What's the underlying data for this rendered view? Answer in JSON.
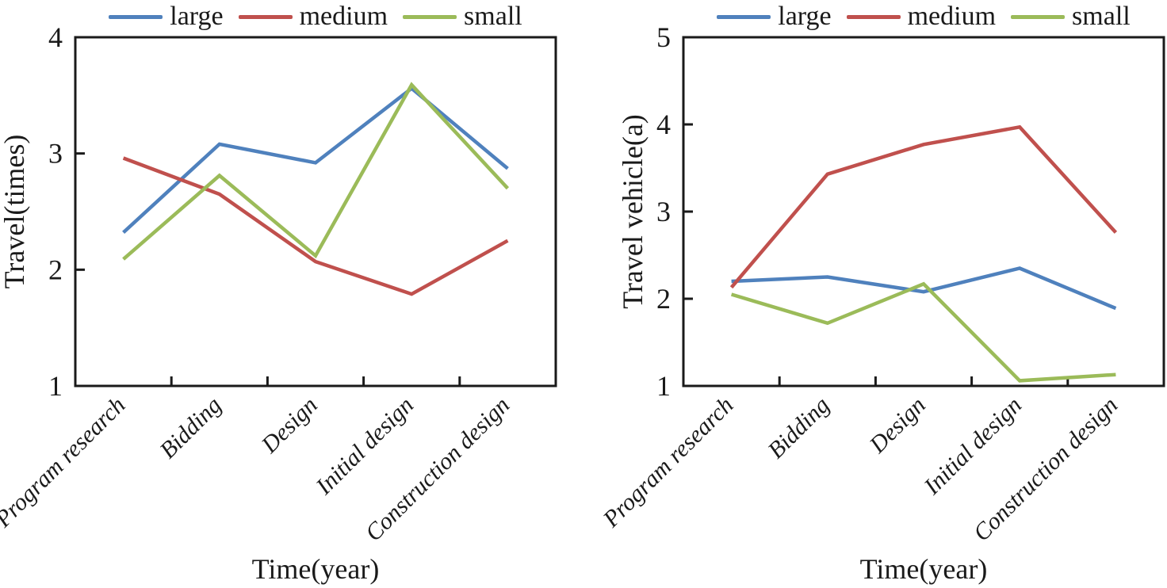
{
  "figure": {
    "background": "#ffffff",
    "text_color": "#1a1a1a",
    "axis_color": "#1a1a1a"
  },
  "legend": {
    "position": "top",
    "labels": [
      "large",
      "medium",
      "small"
    ]
  },
  "chart_data": [
    {
      "id": "travel-times",
      "type": "line",
      "title": "",
      "xlabel": "Time(year)",
      "ylabel": "Travel(times)",
      "ylim": [
        1,
        4
      ],
      "yticks": [
        1,
        2,
        3,
        4
      ],
      "grid": false,
      "legend_position": "top",
      "categories": [
        "Program research",
        "Bidding",
        "Design",
        "Initial design",
        "Construction design"
      ],
      "series": [
        {
          "name": "large",
          "color": "#4f81bd",
          "values": [
            2.32,
            3.08,
            2.92,
            3.56,
            2.87
          ]
        },
        {
          "name": "medium",
          "color": "#c0504d",
          "values": [
            2.96,
            2.65,
            2.07,
            1.79,
            2.25
          ]
        },
        {
          "name": "small",
          "color": "#9bbb59",
          "values": [
            2.09,
            2.81,
            2.12,
            3.59,
            2.7
          ]
        }
      ]
    },
    {
      "id": "travel-vehicle",
      "type": "line",
      "title": "",
      "xlabel": "Time(year)",
      "ylabel": "Travel vehicle(a)",
      "ylim": [
        1,
        5
      ],
      "yticks": [
        1,
        2,
        3,
        4,
        5
      ],
      "grid": false,
      "legend_position": "top",
      "categories": [
        "Program research",
        "Bidding",
        "Design",
        "Initial design",
        "Construction design"
      ],
      "series": [
        {
          "name": "large",
          "color": "#4f81bd",
          "values": [
            2.2,
            2.25,
            2.08,
            2.35,
            1.89
          ]
        },
        {
          "name": "medium",
          "color": "#c0504d",
          "values": [
            2.13,
            3.43,
            3.77,
            3.97,
            2.76
          ]
        },
        {
          "name": "small",
          "color": "#9bbb59",
          "values": [
            2.05,
            1.72,
            2.17,
            1.06,
            1.13
          ]
        }
      ]
    }
  ]
}
